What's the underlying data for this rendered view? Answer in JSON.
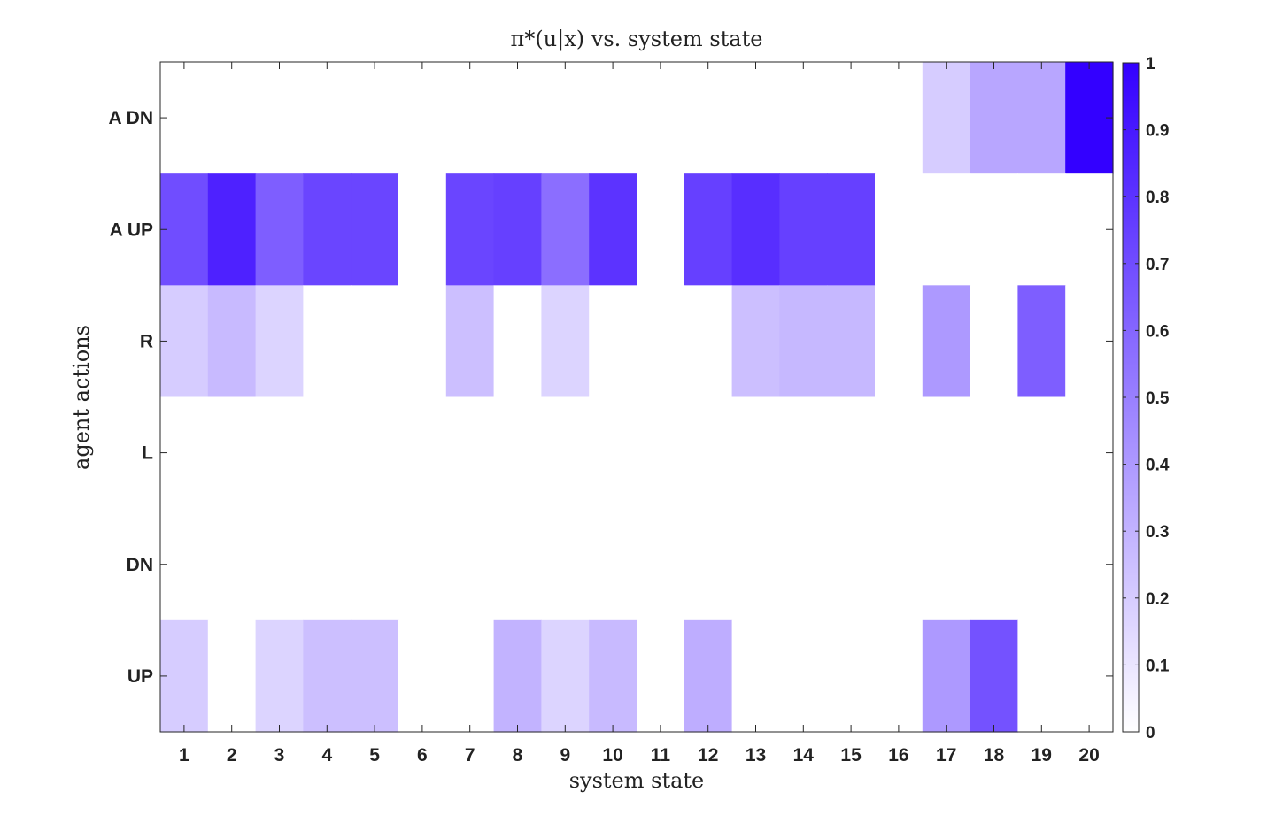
{
  "chart_data": {
    "type": "heatmap",
    "title": "π*(u|x) vs. system state",
    "xlabel": "system state",
    "ylabel": "agent actions",
    "x_categories": [
      "1",
      "2",
      "3",
      "4",
      "5",
      "6",
      "7",
      "8",
      "9",
      "10",
      "11",
      "12",
      "13",
      "14",
      "15",
      "16",
      "17",
      "18",
      "19",
      "20"
    ],
    "y_categories": [
      "A DN",
      "A UP",
      "R",
      "L",
      "DN",
      "UP"
    ],
    "values": [
      [
        0,
        0,
        0,
        0,
        0,
        0,
        0,
        0,
        0,
        0,
        0,
        0,
        0,
        0,
        0,
        0,
        0.2,
        0.35,
        0.35,
        1.0
      ],
      [
        0.7,
        0.87,
        0.63,
        0.73,
        0.73,
        0,
        0.73,
        0.75,
        0.57,
        0.8,
        0,
        0.75,
        0.82,
        0.75,
        0.75,
        0,
        0,
        0,
        0,
        0
      ],
      [
        0.2,
        0.27,
        0.17,
        0,
        0,
        0,
        0.25,
        0,
        0.17,
        0,
        0,
        0,
        0.25,
        0.28,
        0.28,
        0,
        0.4,
        0,
        0.63,
        0
      ],
      [
        0,
        0,
        0,
        0,
        0,
        0,
        0,
        0,
        0,
        0,
        0,
        0,
        0,
        0,
        0,
        0,
        0,
        0,
        0,
        0
      ],
      [
        0,
        0,
        0,
        0,
        0,
        0,
        0,
        0,
        0,
        0,
        0,
        0,
        0,
        0,
        0,
        0,
        0,
        0,
        0,
        0
      ],
      [
        0.2,
        0,
        0.17,
        0.25,
        0.25,
        0,
        0,
        0.3,
        0.17,
        0.27,
        0,
        0.32,
        0,
        0,
        0,
        0,
        0.4,
        0.68,
        0,
        0
      ]
    ],
    "zlim": [
      0,
      1
    ],
    "colorbar_ticks": [
      "0",
      "0.1",
      "0.2",
      "0.3",
      "0.4",
      "0.5",
      "0.6",
      "0.7",
      "0.8",
      "0.9",
      "1"
    ],
    "colormap": {
      "low": "#ffffff",
      "high": "#3300ff"
    },
    "grid": false,
    "colorbar": "right"
  }
}
